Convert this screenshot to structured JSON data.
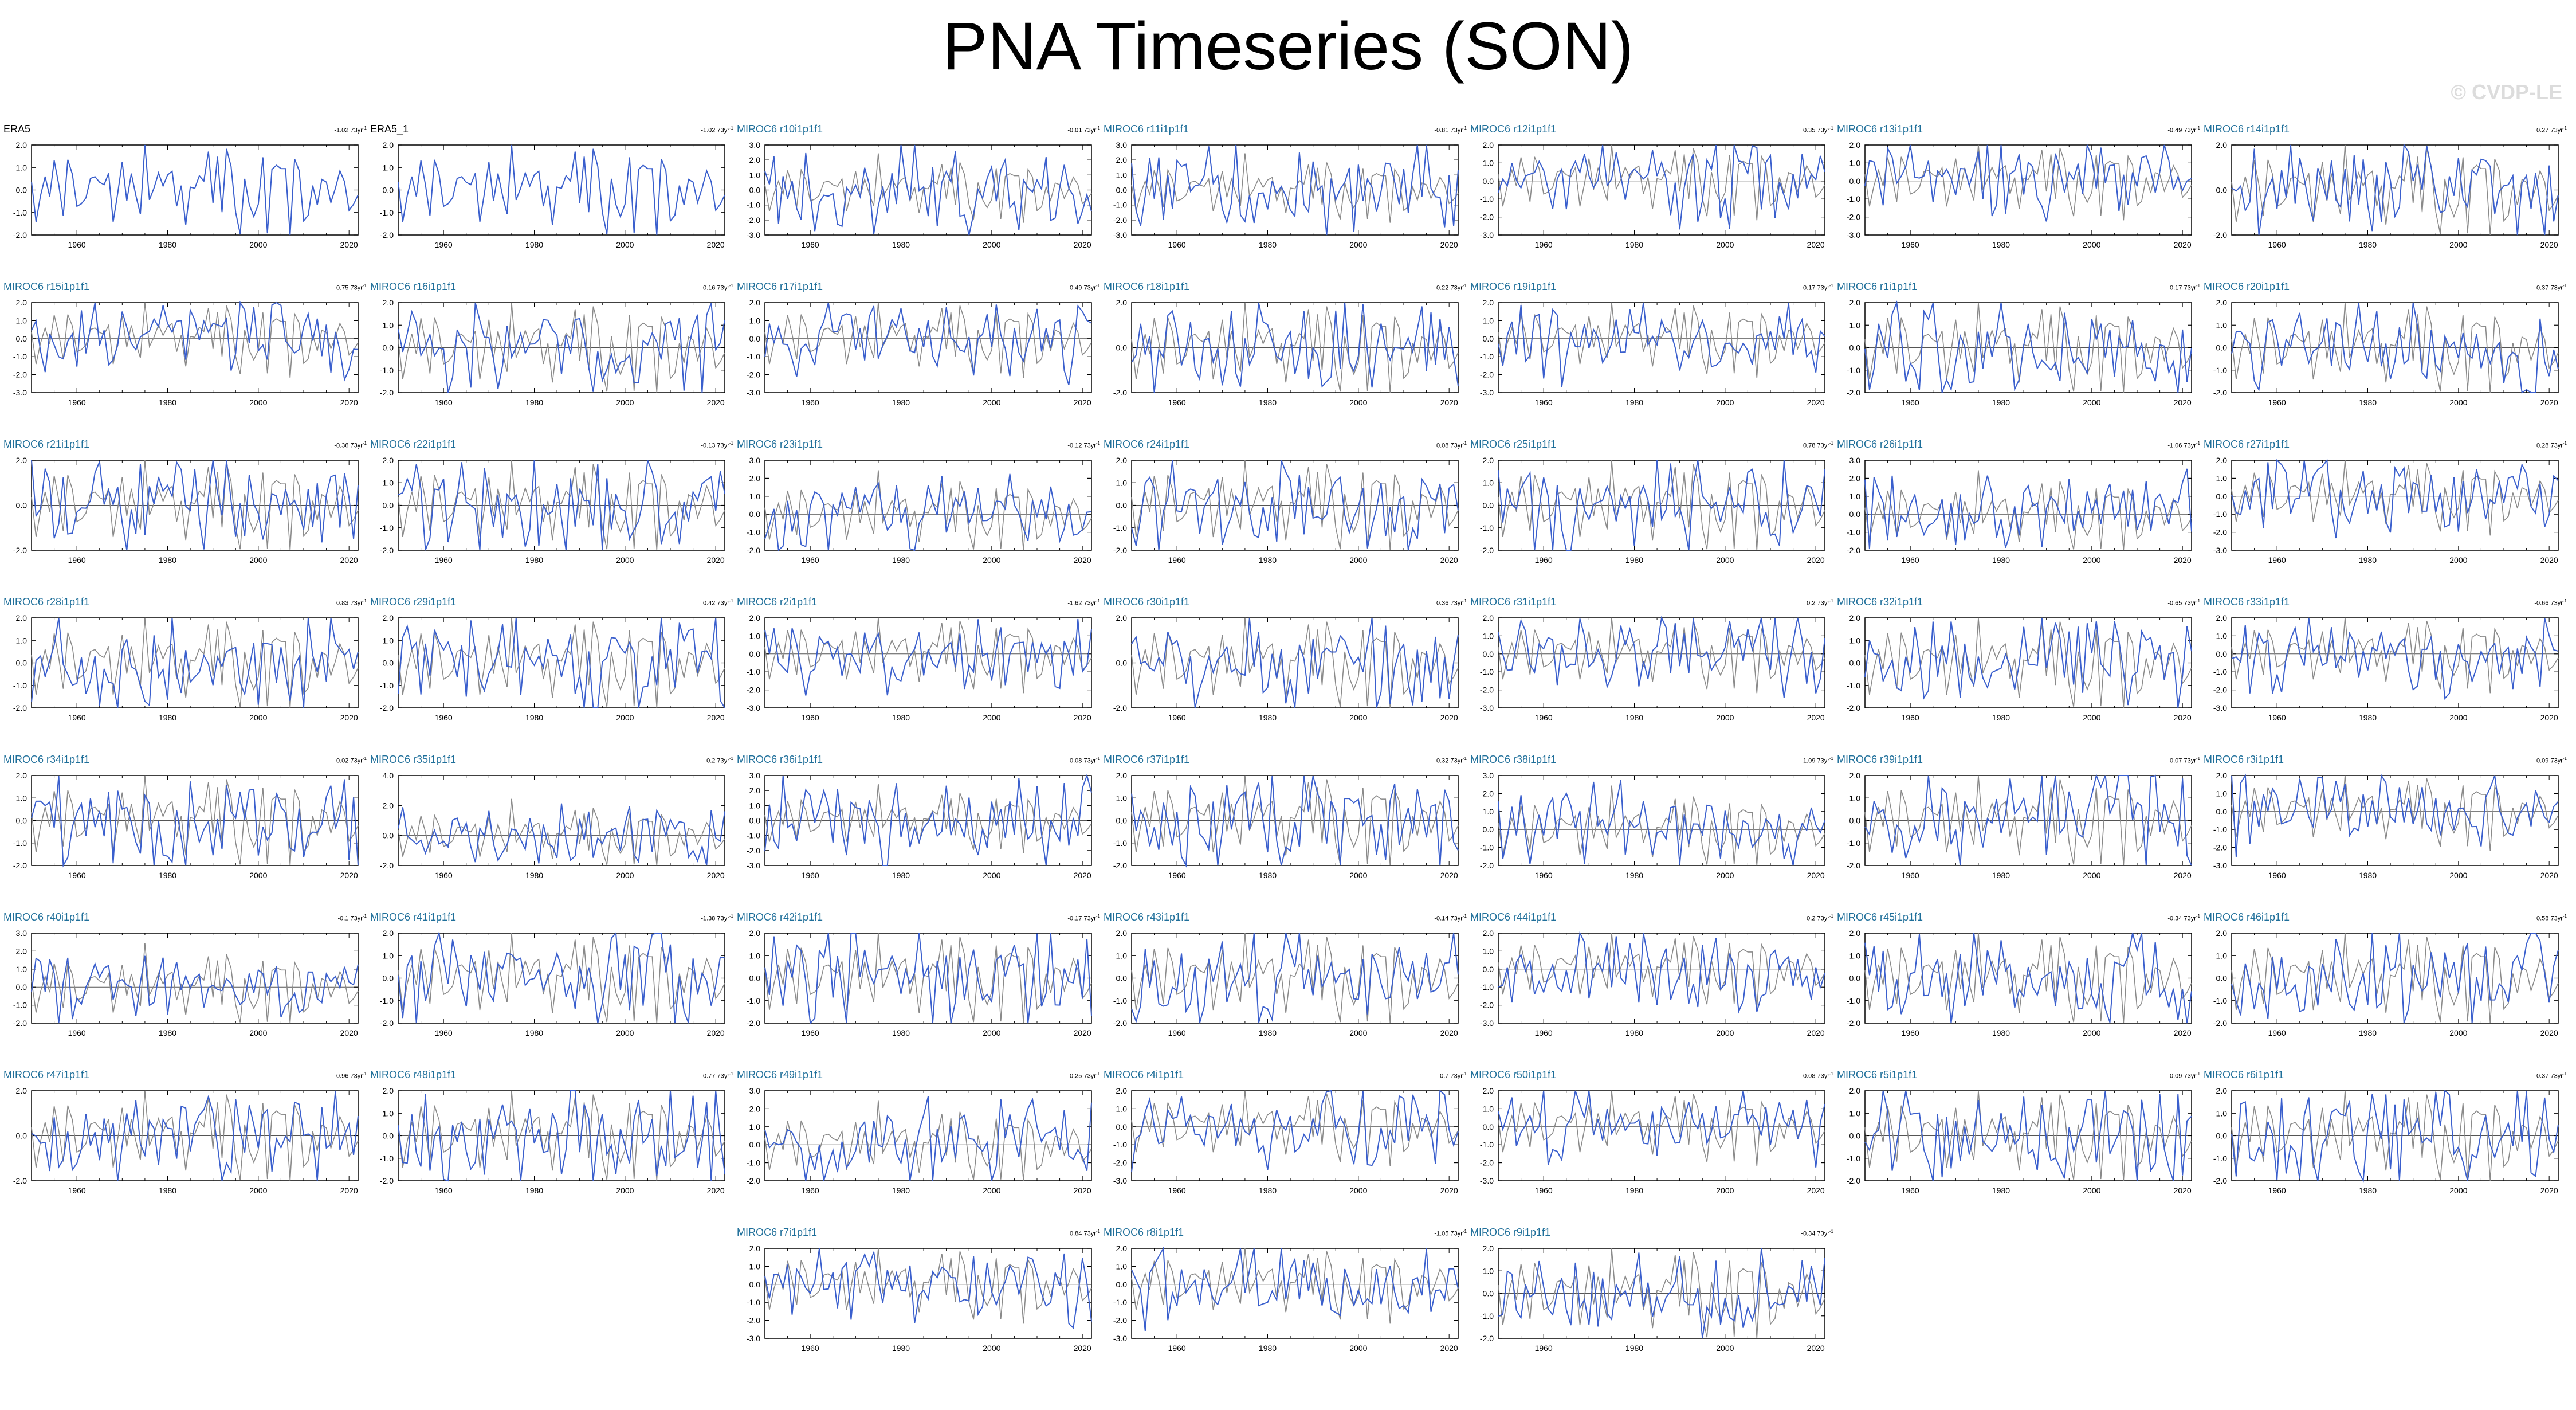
{
  "title": "PNA Timeseries (SON)",
  "watermark": "© CVDP-LE",
  "colors": {
    "model_line": "#3a5fcd",
    "obs_line": "#8a8a8a",
    "model_title": "#1f6f9a",
    "obs_title": "#000000"
  },
  "chart_data": {
    "type": "line",
    "x_range": [
      1950,
      2022
    ],
    "x_ticks": [
      1960,
      1980,
      2000,
      2020
    ],
    "trend_unit": "73yr",
    "panels": [
      {
        "title": "ERA5",
        "trend": "-1.02",
        "ylim": [
          -2.0,
          2.0
        ],
        "yticks": [
          "2.0",
          "1.0",
          "0.0",
          "-1.0",
          "-2.0"
        ],
        "seed": 1,
        "obs": true
      },
      {
        "title": "ERA5_1",
        "trend": "-1.02",
        "ylim": [
          -2.0,
          2.0
        ],
        "yticks": [
          "2.0",
          "1.0",
          "0.0",
          "-1.0",
          "-2.0"
        ],
        "seed": 1,
        "obs": true
      },
      {
        "title": "MIROC6 r10i1p1f1",
        "trend": "-0.01",
        "ylim": [
          -3.0,
          3.0
        ],
        "yticks": [
          "3.0",
          "2.0",
          "1.0",
          "0.0",
          "-1.0",
          "-2.0",
          "-3.0"
        ],
        "seed": 10
      },
      {
        "title": "MIROC6 r11i1p1f1",
        "trend": "-0.81",
        "ylim": [
          -3.0,
          3.0
        ],
        "yticks": [
          "3.0",
          "2.0",
          "1.0",
          "0.0",
          "-1.0",
          "-2.0",
          "-3.0"
        ],
        "seed": 11
      },
      {
        "title": "MIROC6 r12i1p1f1",
        "trend": "0.35",
        "ylim": [
          -3.0,
          2.0
        ],
        "yticks": [
          "2.0",
          "1.0",
          "0.0",
          "-1.0",
          "-2.0",
          "-3.0"
        ],
        "seed": 12
      },
      {
        "title": "MIROC6 r13i1p1f1",
        "trend": "-0.49",
        "ylim": [
          -3.0,
          2.0
        ],
        "yticks": [
          "2.0",
          "1.0",
          "0.0",
          "-1.0",
          "-2.0",
          "-3.0"
        ],
        "seed": 13
      },
      {
        "title": "MIROC6 r14i1p1f1",
        "trend": "0.27",
        "ylim": [
          -2.0,
          2.0
        ],
        "yticks": [
          "2.0",
          "0.0",
          "-2.0"
        ],
        "seed": 14
      },
      {
        "title": "MIROC6 r15i1p1f1",
        "trend": "0.75",
        "ylim": [
          -3.0,
          2.0
        ],
        "yticks": [
          "2.0",
          "1.0",
          "0.0",
          "-1.0",
          "-2.0",
          "-3.0"
        ],
        "seed": 15
      },
      {
        "title": "MIROC6 r16i1p1f1",
        "trend": "-0.16",
        "ylim": [
          -2.0,
          2.0
        ],
        "yticks": [
          "2.0",
          "1.0",
          "0.0",
          "-1.0",
          "-2.0"
        ],
        "seed": 16
      },
      {
        "title": "MIROC6 r17i1p1f1",
        "trend": "-0.49",
        "ylim": [
          -3.0,
          2.0
        ],
        "yticks": [
          "2.0",
          "1.0",
          "0.0",
          "-1.0",
          "-2.0",
          "-3.0"
        ],
        "seed": 17
      },
      {
        "title": "MIROC6 r18i1p1f1",
        "trend": "-0.22",
        "ylim": [
          -2.0,
          2.0
        ],
        "yticks": [
          "2.0",
          "0.0",
          "-2.0"
        ],
        "seed": 18
      },
      {
        "title": "MIROC6 r19i1p1f1",
        "trend": "0.17",
        "ylim": [
          -3.0,
          2.0
        ],
        "yticks": [
          "2.0",
          "1.0",
          "0.0",
          "-1.0",
          "-2.0",
          "-3.0"
        ],
        "seed": 19
      },
      {
        "title": "MIROC6 r1i1p1f1",
        "trend": "-0.17",
        "ylim": [
          -2.0,
          2.0
        ],
        "yticks": [
          "2.0",
          "1.0",
          "0.0",
          "-1.0",
          "-2.0"
        ],
        "seed": 1
      },
      {
        "title": "MIROC6 r20i1p1f1",
        "trend": "-0.37",
        "ylim": [
          -2.0,
          2.0
        ],
        "yticks": [
          "2.0",
          "1.0",
          "0.0",
          "-1.0",
          "-2.0"
        ],
        "seed": 20
      },
      {
        "title": "MIROC6 r21i1p1f1",
        "trend": "-0.36",
        "ylim": [
          -2.0,
          2.0
        ],
        "yticks": [
          "2.0",
          "0.0",
          "-2.0"
        ],
        "seed": 21
      },
      {
        "title": "MIROC6 r22i1p1f1",
        "trend": "-0.13",
        "ylim": [
          -2.0,
          2.0
        ],
        "yticks": [
          "2.0",
          "1.0",
          "0.0",
          "-1.0",
          "-2.0"
        ],
        "seed": 22
      },
      {
        "title": "MIROC6 r23i1p1f1",
        "trend": "-0.12",
        "ylim": [
          -2.0,
          3.0
        ],
        "yticks": [
          "3.0",
          "2.0",
          "1.0",
          "0.0",
          "-1.0",
          "-2.0"
        ],
        "seed": 23
      },
      {
        "title": "MIROC6 r24i1p1f1",
        "trend": "0.08",
        "ylim": [
          -2.0,
          2.0
        ],
        "yticks": [
          "2.0",
          "1.0",
          "0.0",
          "-1.0",
          "-2.0"
        ],
        "seed": 24
      },
      {
        "title": "MIROC6 r25i1p1f1",
        "trend": "0.78",
        "ylim": [
          -2.0,
          2.0
        ],
        "yticks": [
          "2.0",
          "1.0",
          "0.0",
          "-1.0",
          "-2.0"
        ],
        "seed": 25
      },
      {
        "title": "MIROC6 r26i1p1f1",
        "trend": "-1.06",
        "ylim": [
          -2.0,
          3.0
        ],
        "yticks": [
          "3.0",
          "2.0",
          "1.0",
          "0.0",
          "-1.0",
          "-2.0"
        ],
        "seed": 26
      },
      {
        "title": "MIROC6 r27i1p1f1",
        "trend": "0.28",
        "ylim": [
          -3.0,
          2.0
        ],
        "yticks": [
          "2.0",
          "1.0",
          "0.0",
          "-1.0",
          "-2.0",
          "-3.0"
        ],
        "seed": 27
      },
      {
        "title": "MIROC6 r28i1p1f1",
        "trend": "0.83",
        "ylim": [
          -2.0,
          2.0
        ],
        "yticks": [
          "2.0",
          "1.0",
          "0.0",
          "-1.0",
          "-2.0"
        ],
        "seed": 28
      },
      {
        "title": "MIROC6 r29i1p1f1",
        "trend": "0.42",
        "ylim": [
          -2.0,
          2.0
        ],
        "yticks": [
          "2.0",
          "1.0",
          "0.0",
          "-1.0",
          "-2.0"
        ],
        "seed": 29
      },
      {
        "title": "MIROC6 r2i1p1f1",
        "trend": "-1.62",
        "ylim": [
          -3.0,
          2.0
        ],
        "yticks": [
          "2.0",
          "1.0",
          "0.0",
          "-1.0",
          "-2.0",
          "-3.0"
        ],
        "seed": 2
      },
      {
        "title": "MIROC6 r30i1p1f1",
        "trend": "0.36",
        "ylim": [
          -2.0,
          2.0
        ],
        "yticks": [
          "2.0",
          "0.0",
          "-2.0"
        ],
        "seed": 30
      },
      {
        "title": "MIROC6 r31i1p1f1",
        "trend": "0.2",
        "ylim": [
          -3.0,
          2.0
        ],
        "yticks": [
          "2.0",
          "1.0",
          "0.0",
          "-1.0",
          "-2.0",
          "-3.0"
        ],
        "seed": 31
      },
      {
        "title": "MIROC6 r32i1p1f1",
        "trend": "-0.65",
        "ylim": [
          -2.0,
          2.0
        ],
        "yticks": [
          "2.0",
          "1.0",
          "0.0",
          "-1.0",
          "-2.0"
        ],
        "seed": 32
      },
      {
        "title": "MIROC6 r33i1p1f1",
        "trend": "-0.66",
        "ylim": [
          -3.0,
          2.0
        ],
        "yticks": [
          "2.0",
          "1.0",
          "0.0",
          "-1.0",
          "-2.0",
          "-3.0"
        ],
        "seed": 33
      },
      {
        "title": "MIROC6 r34i1p1f1",
        "trend": "-0.02",
        "ylim": [
          -2.0,
          2.0
        ],
        "yticks": [
          "2.0",
          "1.0",
          "0.0",
          "-1.0",
          "-2.0"
        ],
        "seed": 34
      },
      {
        "title": "MIROC6 r35i1p1f1",
        "trend": "-0.2",
        "ylim": [
          -2.0,
          4.0
        ],
        "yticks": [
          "4.0",
          "2.0",
          "0.0",
          "-2.0"
        ],
        "seed": 35
      },
      {
        "title": "MIROC6 r36i1p1f1",
        "trend": "-0.08",
        "ylim": [
          -3.0,
          3.0
        ],
        "yticks": [
          "3.0",
          "2.0",
          "1.0",
          "0.0",
          "-1.0",
          "-2.0",
          "-3.0"
        ],
        "seed": 36
      },
      {
        "title": "MIROC6 r37i1p1f1",
        "trend": "-0.32",
        "ylim": [
          -2.0,
          2.0
        ],
        "yticks": [
          "2.0",
          "1.0",
          "0.0",
          "-1.0",
          "-2.0"
        ],
        "seed": 37
      },
      {
        "title": "MIROC6 r38i1p1f1",
        "trend": "1.09",
        "ylim": [
          -2.0,
          3.0
        ],
        "yticks": [
          "3.0",
          "2.0",
          "1.0",
          "0.0",
          "-1.0",
          "-2.0"
        ],
        "seed": 38
      },
      {
        "title": "MIROC6 r39i1p1f1",
        "trend": "0.07",
        "ylim": [
          -2.0,
          2.0
        ],
        "yticks": [
          "2.0",
          "1.0",
          "0.0",
          "-1.0",
          "-2.0"
        ],
        "seed": 39
      },
      {
        "title": "MIROC6 r3i1p1f1",
        "trend": "-0.09",
        "ylim": [
          -3.0,
          2.0
        ],
        "yticks": [
          "2.0",
          "1.0",
          "0.0",
          "-1.0",
          "-2.0",
          "-3.0"
        ],
        "seed": 3
      },
      {
        "title": "MIROC6 r40i1p1f1",
        "trend": "-0.1",
        "ylim": [
          -2.0,
          3.0
        ],
        "yticks": [
          "3.0",
          "2.0",
          "1.0",
          "0.0",
          "-1.0",
          "-2.0"
        ],
        "seed": 40
      },
      {
        "title": "MIROC6 r41i1p1f1",
        "trend": "-1.38",
        "ylim": [
          -2.0,
          2.0
        ],
        "yticks": [
          "2.0",
          "1.0",
          "0.0",
          "-1.0",
          "-2.0"
        ],
        "seed": 41
      },
      {
        "title": "MIROC6 r42i1p1f1",
        "trend": "-0.17",
        "ylim": [
          -2.0,
          2.0
        ],
        "yticks": [
          "2.0",
          "1.0",
          "0.0",
          "-1.0",
          "-2.0"
        ],
        "seed": 42
      },
      {
        "title": "MIROC6 r43i1p1f1",
        "trend": "-0.14",
        "ylim": [
          -2.0,
          2.0
        ],
        "yticks": [
          "2.0",
          "1.0",
          "0.0",
          "-1.0",
          "-2.0"
        ],
        "seed": 43
      },
      {
        "title": "MIROC6 r44i1p1f1",
        "trend": "0.2",
        "ylim": [
          -3.0,
          2.0
        ],
        "yticks": [
          "2.0",
          "1.0",
          "0.0",
          "-1.0",
          "-2.0",
          "-3.0"
        ],
        "seed": 44
      },
      {
        "title": "MIROC6 r45i1p1f1",
        "trend": "-0.34",
        "ylim": [
          -2.0,
          2.0
        ],
        "yticks": [
          "2.0",
          "1.0",
          "0.0",
          "-1.0",
          "-2.0"
        ],
        "seed": 45
      },
      {
        "title": "MIROC6 r46i1p1f1",
        "trend": "0.58",
        "ylim": [
          -2.0,
          2.0
        ],
        "yticks": [
          "2.0",
          "1.0",
          "0.0",
          "-1.0",
          "-2.0"
        ],
        "seed": 46
      },
      {
        "title": "MIROC6 r47i1p1f1",
        "trend": "0.96",
        "ylim": [
          -2.0,
          2.0
        ],
        "yticks": [
          "2.0",
          "0.0",
          "-2.0"
        ],
        "seed": 47
      },
      {
        "title": "MIROC6 r48i1p1f1",
        "trend": "0.77",
        "ylim": [
          -2.0,
          2.0
        ],
        "yticks": [
          "2.0",
          "1.0",
          "0.0",
          "-1.0",
          "-2.0"
        ],
        "seed": 48
      },
      {
        "title": "MIROC6 r49i1p1f1",
        "trend": "-0.25",
        "ylim": [
          -2.0,
          3.0
        ],
        "yticks": [
          "3.0",
          "2.0",
          "1.0",
          "0.0",
          "-1.0",
          "-2.0"
        ],
        "seed": 49
      },
      {
        "title": "MIROC6 r4i1p1f1",
        "trend": "-0.7",
        "ylim": [
          -3.0,
          2.0
        ],
        "yticks": [
          "2.0",
          "1.0",
          "0.0",
          "-1.0",
          "-2.0",
          "-3.0"
        ],
        "seed": 4
      },
      {
        "title": "MIROC6 r50i1p1f1",
        "trend": "0.08",
        "ylim": [
          -3.0,
          2.0
        ],
        "yticks": [
          "2.0",
          "1.0",
          "0.0",
          "-1.0",
          "-2.0",
          "-3.0"
        ],
        "seed": 50
      },
      {
        "title": "MIROC6 r5i1p1f1",
        "trend": "-0.09",
        "ylim": [
          -2.0,
          2.0
        ],
        "yticks": [
          "2.0",
          "1.0",
          "0.0",
          "-1.0",
          "-2.0"
        ],
        "seed": 5
      },
      {
        "title": "MIROC6 r6i1p1f1",
        "trend": "-0.37",
        "ylim": [
          -2.0,
          2.0
        ],
        "yticks": [
          "2.0",
          "1.0",
          "0.0",
          "-1.0",
          "-2.0"
        ],
        "seed": 6
      },
      {
        "title": "MIROC6 r7i1p1f1",
        "trend": "0.84",
        "ylim": [
          -3.0,
          2.0
        ],
        "yticks": [
          "2.0",
          "1.0",
          "0.0",
          "-1.0",
          "-2.0",
          "-3.0"
        ],
        "seed": 7
      },
      {
        "title": "MIROC6 r8i1p1f1",
        "trend": "-1.05",
        "ylim": [
          -3.0,
          2.0
        ],
        "yticks": [
          "2.0",
          "1.0",
          "0.0",
          "-1.0",
          "-2.0",
          "-3.0"
        ],
        "seed": 8
      },
      {
        "title": "MIROC6 r9i1p1f1",
        "trend": "-0.34",
        "ylim": [
          -2.0,
          2.0
        ],
        "yticks": [
          "2.0",
          "1.0",
          "0.0",
          "-1.0",
          "-2.0"
        ],
        "seed": 9
      }
    ]
  }
}
